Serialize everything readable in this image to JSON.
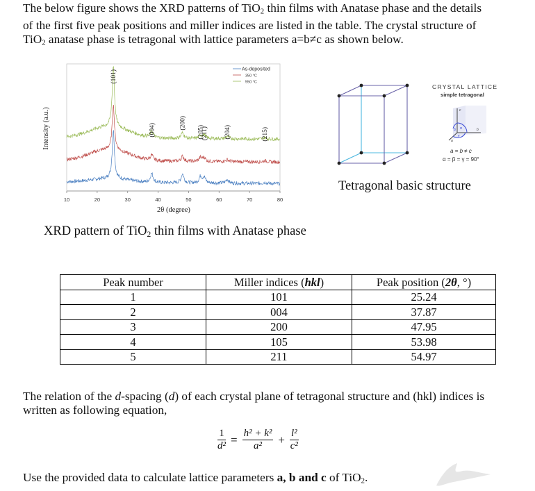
{
  "intro": {
    "line1": "The below figure shows the XRD patterns of TiO",
    "line1_sub": "2",
    "line1_rest": " thin films with Anatase phase and the details",
    "line2": "of the first five peak positions and miller indices are listed in the table. The crystal structure of",
    "line3_a": "TiO",
    "line3_sub": "2",
    "line3_rest": " anatase phase is tetragonal with lattice parameters a=b≠c as shown below."
  },
  "figure": {
    "caption_a": "XRD pattern of TiO",
    "caption_sub": "2",
    "caption_rest": " thin films with Anatase phase"
  },
  "lattice": {
    "title": "CRYSTAL LATTICE",
    "subtitle": "simple tetragonal",
    "axis_labels": {
      "a": "a",
      "b": "b",
      "c": "c",
      "alpha": "α",
      "beta": "β",
      "gamma": "γ"
    },
    "relation_lengths": "a = b ≠ c",
    "relation_angles": "α = β = γ = 90°",
    "caption": "Tetragonal basic structure",
    "colors": {
      "edge": "#6a63a8",
      "hidden_edge": "#4db8e0",
      "node": "#222222"
    }
  },
  "table": {
    "headers": [
      "Peak number",
      "Miller indices (",
      "hkl",
      ")",
      "Peak position (",
      "2θ",
      ", °)"
    ],
    "rows": [
      [
        "1",
        "101",
        "25.24"
      ],
      [
        "2",
        "004",
        "37.87"
      ],
      [
        "3",
        "200",
        "47.95"
      ],
      [
        "4",
        "105",
        "53.98"
      ],
      [
        "5",
        "211",
        "54.97"
      ]
    ]
  },
  "relation": {
    "line1_a": "The relation of the ",
    "line1_d": "d",
    "line1_b": "-spacing (",
    "line1_d2": "d",
    "line1_c": ") of each crystal plane of tetragonal structure and (hkl) indices is",
    "line2": "written as following equation,"
  },
  "equation": {
    "lhs_num": "1",
    "lhs_den": "d²",
    "eq": "=",
    "t1_num": "h² + k²",
    "t1_den": "a²",
    "plus": "+",
    "t2_num": "l²",
    "t2_den": "c²"
  },
  "final": {
    "a": "Use the provided data to calculate lattice parameters ",
    "bold": "a, b and c",
    "b": " of TiO",
    "sub": "2",
    "c": "."
  },
  "chart_data": {
    "type": "line",
    "title": "",
    "xlabel": "2θ (degree)",
    "ylabel": "Intensity (a.u.)",
    "xlim": [
      10,
      80
    ],
    "xticks": [
      10,
      20,
      30,
      40,
      50,
      60,
      70,
      80
    ],
    "grid": false,
    "legend_position": "top-right",
    "legend": [
      "As-deposited",
      "350 °C",
      "550 °C"
    ],
    "peak_labels": [
      {
        "label": "(101)",
        "x": 25.3
      },
      {
        "label": "(004)",
        "x": 37.9
      },
      {
        "label": "(200)",
        "x": 48.0
      },
      {
        "label": "(105)",
        "x": 53.9
      },
      {
        "label": "(211)",
        "x": 55.1
      },
      {
        "label": "(204)",
        "x": 62.7
      },
      {
        "label": "(215)",
        "x": 75.0
      }
    ],
    "series": [
      {
        "name": "As-deposited",
        "color": "#4a7fc1",
        "baseline": 0.07,
        "hump": 0.03,
        "peaks": [
          [
            25.3,
            0.38
          ],
          [
            37.9,
            0.07
          ],
          [
            48.0,
            0.07
          ],
          [
            53.9,
            0.05
          ],
          [
            55.1,
            0.045
          ],
          [
            62.7,
            0.03
          ],
          [
            75.0,
            0.01
          ]
        ]
      },
      {
        "name": "350 °C",
        "color": "#c0504d",
        "baseline": 0.24,
        "hump": 0.09,
        "peaks": [
          [
            25.3,
            0.35
          ],
          [
            37.9,
            0.04
          ],
          [
            48.0,
            0.04
          ],
          [
            53.9,
            0.03
          ],
          [
            55.1,
            0.03
          ],
          [
            62.7,
            0.015
          ],
          [
            75.0,
            0.01
          ]
        ]
      },
      {
        "name": "550 °C",
        "color": "#9bbb59",
        "baseline": 0.42,
        "hump": 0.09,
        "peaks": [
          [
            25.3,
            0.48
          ],
          [
            37.9,
            0.05
          ],
          [
            48.0,
            0.045
          ],
          [
            53.9,
            0.025
          ],
          [
            55.1,
            0.03
          ],
          [
            62.7,
            0.02
          ],
          [
            75.0,
            0.01
          ]
        ]
      }
    ]
  }
}
